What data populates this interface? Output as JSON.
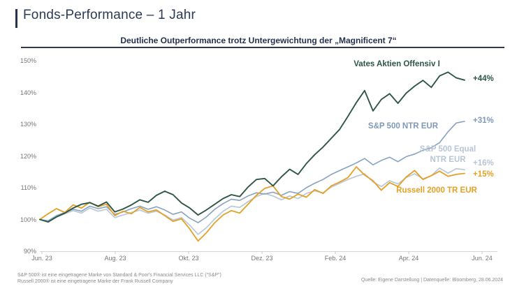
{
  "page": {
    "title": "Fonds-Performance – 1 Jahr"
  },
  "chart_data": {
    "type": "line",
    "title": "Deutliche Outperformance trotz Untergewichtung der „Magnificent 7“",
    "x_ticks": [
      "Jun. 23",
      "Aug. 23",
      "Okt. 23",
      "Dez. 23",
      "Feb. 24",
      "Apr. 24",
      "Jun. 24"
    ],
    "y_ticks": [
      "150%",
      "140%",
      "130%",
      "120%",
      "110%",
      "100%",
      "90%"
    ],
    "ylim": [
      90,
      150
    ],
    "grid": false,
    "legend_position": "inline-labels",
    "series": [
      {
        "name": "Vates Aktien Offensiv I",
        "name_lines": [
          "Vates Aktien Offensiv I"
        ],
        "color": "#2E5646",
        "end_label": "+44%",
        "values": [
          100,
          99.2,
          100.8,
          102,
          103.6,
          104.8,
          105.3,
          104.2,
          105.5,
          102.4,
          103.3,
          104.6,
          106.2,
          105.4,
          107.6,
          108.9,
          107.8,
          105.2,
          103.6,
          101.4,
          103,
          104.8,
          106.6,
          107.8,
          107.2,
          110.2,
          112.6,
          112.9,
          110.6,
          113.4,
          115.8,
          114.2,
          117.6,
          120.4,
          122.8,
          125.6,
          128.4,
          132.5,
          136.8,
          140.6,
          134.2,
          137.8,
          139.6,
          136.6,
          139.8,
          142,
          143.8,
          141.6,
          145.2,
          146.4,
          144.6,
          143.9
        ]
      },
      {
        "name": "S&P 500 NTR EUR",
        "name_lines": [
          "S&P 500 NTR EUR"
        ],
        "color": "#87A2C1",
        "end_label": "+31%",
        "values": [
          100,
          99.6,
          101.2,
          102.2,
          103.2,
          102.6,
          104.2,
          103.4,
          104,
          101.6,
          102.4,
          103.4,
          104.2,
          103.2,
          104,
          103,
          101.6,
          102.4,
          100.4,
          99,
          100.8,
          103.2,
          105,
          106.4,
          106,
          107.4,
          108.4,
          108,
          108.6,
          107.6,
          108.8,
          108.2,
          110,
          111.4,
          112.6,
          114.2,
          115.4,
          116.6,
          117.8,
          119.2,
          117.2,
          118.6,
          119.6,
          118.2,
          119.8,
          120.6,
          121.8,
          122.6,
          124.2,
          127.6,
          130.4,
          130.9
        ]
      },
      {
        "name": "S&P 500 Equal NTR EUR",
        "name_lines": [
          "S&P 500 Equal",
          "NTR EUR"
        ],
        "color": "#BAC8D8",
        "end_label": "+16%",
        "values": [
          100,
          99.4,
          100.8,
          101.8,
          102.8,
          102,
          103.6,
          102.6,
          103.2,
          100.6,
          101.4,
          102.2,
          103,
          102,
          102.6,
          101.4,
          99.8,
          100.6,
          98.2,
          95.3,
          97.4,
          100.2,
          102.6,
          104.2,
          103.8,
          105.6,
          107.2,
          108.2,
          107.4,
          106.2,
          107.4,
          106.6,
          108.2,
          109,
          108.4,
          110.2,
          111.4,
          112.6,
          113.6,
          114.4,
          111.8,
          110.4,
          112.2,
          111.2,
          113.2,
          114.4,
          112.8,
          113.8,
          116.2,
          114.6,
          116,
          115.7
        ]
      },
      {
        "name": "Russell 2000 TR EUR",
        "name_lines": [
          "Russell 2000 TR EUR"
        ],
        "color": "#E4A126",
        "end_label": "+15%",
        "values": [
          100,
          101.8,
          103.4,
          102.2,
          104.6,
          103.6,
          105.4,
          104,
          104.8,
          101.2,
          102.6,
          101.8,
          103.8,
          102.4,
          103,
          101.2,
          99.4,
          100.2,
          97,
          93.2,
          95.8,
          99,
          101.4,
          102.8,
          102,
          104.8,
          107.6,
          109.8,
          110.6,
          107.2,
          106.4,
          108,
          107,
          109.4,
          108.2,
          110.6,
          111.8,
          113.2,
          116.6,
          114,
          112.2,
          109.2,
          111.6,
          110.4,
          113.4,
          115.4,
          112.6,
          113.8,
          115.2,
          113.6,
          114.2,
          114.5
        ]
      }
    ]
  },
  "footer": {
    "left_line1": "S&P 500® ist eine eingetragene Marke von Standard & Poor's Financial Services LLC (\"S&P\")",
    "left_line2": "Russell 2000® ist eine eingetragene Marke der Frank Russell Company",
    "right": "Quelle: Eigene Darstellung | Datenquelle: Bloomberg, 28.06.2024"
  }
}
